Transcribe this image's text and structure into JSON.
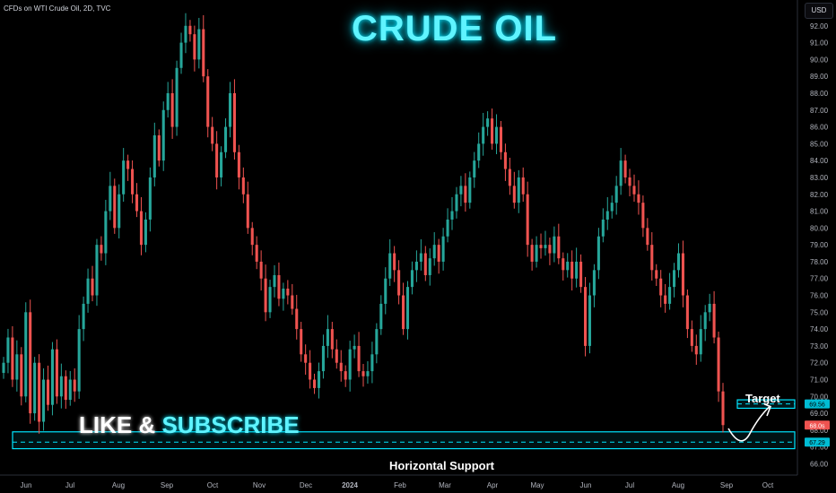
{
  "header": {
    "symbol": "CFDs on WTI Crude Oil, 2D, TVC",
    "currency": "USD"
  },
  "overlay": {
    "title": "CRUDE OIL",
    "like_text": "LIKE & ",
    "subscribe_text": "SUBSCRIBE",
    "target_label": "Target",
    "support_label": "Horizontal Support"
  },
  "colors": {
    "up": "#26a69a",
    "down": "#ef5350",
    "accent": "#00e5ff",
    "background": "#000000"
  },
  "chart_data": {
    "type": "candlestick",
    "x_ticks": [
      "Jun",
      "Jul",
      "Aug",
      "Sep",
      "Oct",
      "Nov",
      "Dec",
      "2024",
      "Feb",
      "Mar",
      "Apr",
      "May",
      "Jun",
      "Jul",
      "Aug",
      "Sep",
      "Oct"
    ],
    "ylim": [
      65.6,
      93.0
    ],
    "y_ticks": [
      66,
      67,
      68,
      69,
      70,
      71,
      72,
      73,
      74,
      75,
      76,
      77,
      78,
      79,
      80,
      81,
      82,
      83,
      84,
      85,
      86,
      87,
      88,
      89,
      90,
      91,
      92
    ],
    "current_price": "68.0s",
    "price_badges": [
      {
        "value": "69.56",
        "price": 69.56,
        "color": "#00bcd4"
      },
      {
        "value": "67.29",
        "price": 67.29,
        "color": "#00bcd4"
      }
    ],
    "zones": [
      {
        "name": "horizontal-support",
        "low": 66.9,
        "high": 67.9,
        "mid": 67.29
      },
      {
        "name": "target",
        "low": 69.3,
        "high": 69.8,
        "mid": 69.56
      }
    ],
    "grid": false,
    "series": [
      {
        "values": [
          72,
          73.5,
          71,
          72.5,
          70,
          75,
          69,
          72,
          68.5,
          71,
          69.5,
          72.8,
          70,
          71.2,
          69.8,
          71,
          70.3,
          74,
          75.5,
          77,
          76,
          79,
          78.5,
          81,
          82.5,
          80,
          82,
          84,
          83.5,
          82,
          81,
          79,
          80.5,
          83,
          85.5,
          84,
          87,
          88,
          86,
          89.5,
          91,
          92,
          91.5,
          90,
          91.8,
          89,
          86,
          85,
          83,
          84.5,
          86,
          88,
          84.5,
          83,
          82,
          80,
          79,
          78,
          77,
          75,
          76.5,
          77.2,
          75.8,
          76.4,
          76,
          75.2,
          74,
          72.5,
          72,
          71,
          70.5,
          71.5,
          73,
          74,
          72.8,
          72,
          71.5,
          71,
          72.8,
          73,
          71.5,
          71.2,
          71.5,
          72.5,
          74,
          75.5,
          77,
          78.5,
          77.5,
          76,
          74,
          76.5,
          77.5,
          78,
          78.5,
          77.2,
          78.2,
          79,
          78,
          79.5,
          80.5,
          81,
          82,
          82.5,
          81.5,
          83,
          84,
          85,
          86,
          86.5,
          85,
          86,
          84.5,
          83.5,
          82.5,
          81.5,
          83,
          82,
          79,
          78,
          79,
          78.8,
          79,
          78.5,
          79.5,
          78.2,
          77.5,
          78,
          77,
          78,
          76.5,
          73,
          76,
          77.5,
          79.5,
          80.5,
          81,
          81.5,
          82.5,
          84,
          83,
          82.5,
          82,
          81.5,
          80,
          79,
          77.5,
          77,
          76,
          75.5,
          76.5,
          77.5,
          78.5,
          76,
          74,
          73,
          72.5,
          74,
          75,
          75.5,
          73.5,
          70.3,
          68.3
        ]
      }
    ]
  }
}
